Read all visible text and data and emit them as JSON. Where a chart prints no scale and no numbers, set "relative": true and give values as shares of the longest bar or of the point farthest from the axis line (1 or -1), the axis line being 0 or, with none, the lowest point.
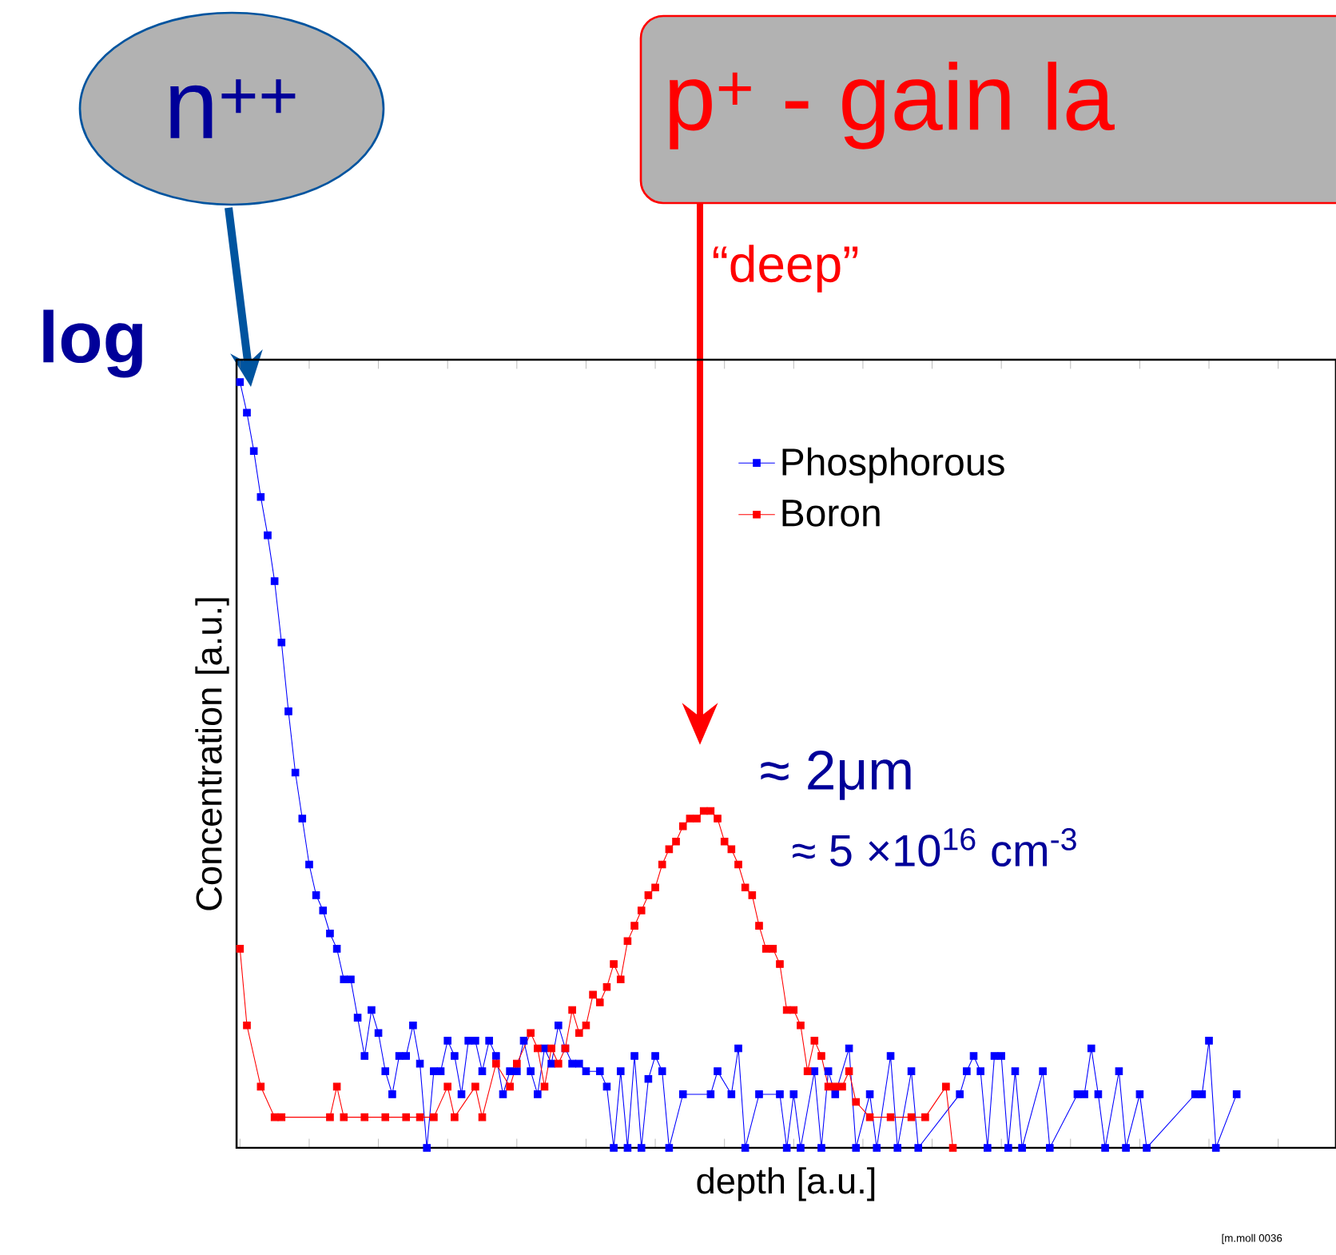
{
  "chart_data": {
    "type": "line",
    "relative": true,
    "xlabel": "depth [a.u.]",
    "ylabel": "Concentration [a.u.]",
    "legend": "top",
    "marker": "square",
    "line_style": "solid",
    "categories": [
      null,
      null,
      null,
      null,
      null,
      null,
      null,
      null,
      null,
      null,
      null,
      null,
      null,
      null,
      null,
      null,
      null,
      null,
      null,
      null,
      null,
      null,
      null,
      null,
      null,
      null,
      null,
      null,
      null,
      null,
      null,
      null,
      null,
      null,
      null,
      null,
      null,
      null,
      null,
      null,
      null,
      null,
      null,
      null,
      null,
      null,
      null,
      null,
      null,
      null,
      null,
      null,
      null,
      null,
      null,
      null,
      null,
      null,
      null,
      null,
      null,
      null,
      null,
      null,
      null,
      null,
      null,
      null,
      null,
      null,
      null,
      null,
      null,
      null,
      null,
      null,
      null,
      null,
      null,
      null,
      null,
      null,
      null,
      null,
      null,
      null,
      null,
      null,
      null,
      null,
      null,
      null,
      null,
      null,
      null,
      null,
      null,
      null,
      null,
      null,
      null,
      null,
      null,
      null,
      null,
      null,
      null,
      null,
      null,
      null,
      null,
      null,
      null,
      null,
      null,
      null,
      null,
      null,
      null,
      null,
      null,
      null,
      null,
      null,
      null,
      null,
      null,
      null,
      null,
      null,
      null,
      null,
      null,
      null,
      null,
      null,
      null,
      null,
      null,
      null,
      null,
      null,
      null,
      null,
      null
    ],
    "series": [
      {
        "name": "Phosphorous",
        "color": "#0000ff",
        "values": [
          1.0,
          0.96,
          0.91,
          0.85,
          0.8,
          0.74,
          0.66,
          0.57,
          0.49,
          0.43,
          0.37,
          0.33,
          0.31,
          0.28,
          0.26,
          0.22,
          0.22,
          0.17,
          0.12,
          0.18,
          0.15,
          0.1,
          0.07,
          0.12,
          0.12,
          0.16,
          0.11,
          0,
          0.1,
          0.1,
          0.14,
          0.12,
          0.07,
          0.14,
          0.14,
          0.1,
          0.14,
          0.12,
          0.07,
          0.1,
          0.1,
          0.14,
          0.1,
          0.07,
          0.13,
          0.11,
          0.16,
          0.13,
          0.11,
          0.11,
          0.1,
          null,
          0.1,
          0.08,
          0,
          0.1,
          0,
          0.12,
          0,
          0.09,
          0.12,
          0.1,
          0,
          null,
          0.07,
          null,
          null,
          null,
          0.07,
          0.1,
          null,
          0.07,
          0.13,
          0,
          null,
          0.07,
          null,
          null,
          0.07,
          0,
          0.07,
          0,
          null,
          0.1,
          0,
          0.1,
          0.07,
          null,
          0.13,
          0,
          null,
          0.07,
          0,
          null,
          0.12,
          0,
          null,
          0.1,
          0,
          null,
          null,
          null,
          null,
          null,
          0.07,
          0.1,
          0.12,
          0.1,
          0,
          0.12,
          0.12,
          0,
          0.1,
          0,
          null,
          null,
          0.1,
          0,
          null,
          null,
          null,
          0.07,
          0.07,
          0.13,
          0.07,
          0,
          null,
          0.1,
          0,
          null,
          0.07,
          0,
          null,
          null,
          null,
          null,
          null,
          null,
          0.07,
          0.07,
          0.14,
          0,
          null,
          null,
          0.07
        ]
      },
      {
        "name": "Boron",
        "color": "#ff0000",
        "values": [
          0.26,
          0.16,
          null,
          0.08,
          null,
          0.04,
          0.04,
          null,
          null,
          null,
          null,
          null,
          null,
          0.04,
          0.08,
          0.04,
          null,
          null,
          0.04,
          null,
          null,
          0.04,
          null,
          null,
          0.04,
          null,
          0.04,
          null,
          0.04,
          null,
          0.08,
          0.04,
          null,
          null,
          0.08,
          0.04,
          null,
          0.11,
          null,
          0.08,
          0.11,
          null,
          0.15,
          0.13,
          0.08,
          0.13,
          0.11,
          0.13,
          0.18,
          0.15,
          0.16,
          0.2,
          0.19,
          0.21,
          0.24,
          0.22,
          0.27,
          0.29,
          0.31,
          0.33,
          0.34,
          0.37,
          0.39,
          0.4,
          0.42,
          0.43,
          0.43,
          0.44,
          0.44,
          0.43,
          0.4,
          0.39,
          0.37,
          0.34,
          0.33,
          0.29,
          0.26,
          0.26,
          0.24,
          0.18,
          0.18,
          0.16,
          0.1,
          0.14,
          0.12,
          0.08,
          0.08,
          0.08,
          0.1,
          0.06,
          null,
          0.04,
          null,
          null,
          0.04,
          null,
          null,
          0.04,
          null,
          0.04,
          null,
          null,
          0.08,
          0,
          null,
          null,
          null,
          null,
          null,
          null,
          null,
          null,
          null,
          null,
          null,
          null,
          null,
          null,
          null,
          null,
          null,
          null,
          null,
          null,
          null,
          null,
          null,
          null,
          null,
          null,
          null,
          null,
          null,
          null,
          null,
          null,
          null,
          null,
          null,
          null,
          null,
          null,
          null,
          null,
          null
        ]
      }
    ],
    "annotations": [
      "log",
      "n$^{++}$",
      "p$^{+}$ - gain la",
      "“deep”",
      "≈ 2μm",
      "≈ 5 ×10$^{16}$ cm$^{-3}$",
      "[m.moll 0036"
    ]
  }
}
